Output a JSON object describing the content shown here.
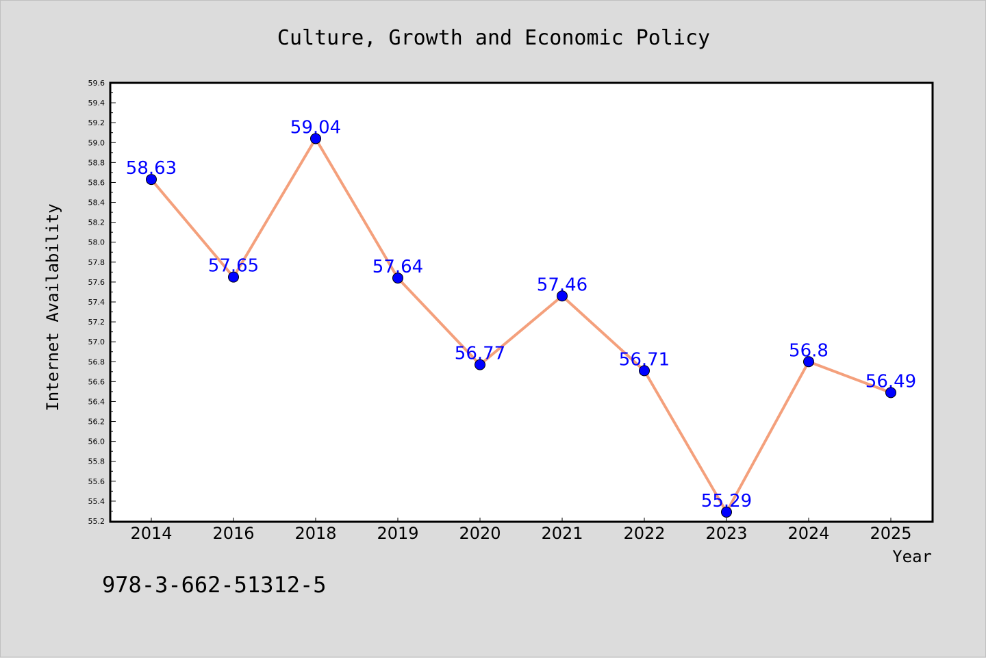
{
  "chart_data": {
    "type": "line",
    "title": "Culture, Growth and Economic Policy",
    "xlabel": "Year",
    "ylabel": "Internet Availability",
    "categories": [
      "2014",
      "2016",
      "2018",
      "2019",
      "2020",
      "2021",
      "2022",
      "2023",
      "2024",
      "2025"
    ],
    "series": [
      {
        "values": [
          58.63,
          57.65,
          59.04,
          57.64,
          56.77,
          57.46,
          56.71,
          55.29,
          56.8,
          56.49
        ],
        "data_labels": [
          "58.63",
          "57.65",
          "59.04",
          "57.64",
          "56.77",
          "57.46",
          "56.71",
          "55.29",
          "56.8",
          "56.49"
        ],
        "line_color": "#f4a07c",
        "marker_color": "#0000ff"
      }
    ],
    "ylim": [
      55.2,
      59.6
    ],
    "yticks": [
      "55.2",
      "55.4",
      "55.6",
      "55.8",
      "56.0",
      "56.2",
      "56.4",
      "56.6",
      "56.8",
      "57.0",
      "57.2",
      "57.4",
      "57.6",
      "57.8",
      "58.0",
      "58.2",
      "58.4",
      "58.6",
      "58.8",
      "59.0",
      "59.2",
      "59.4",
      "59.6"
    ],
    "grid": false,
    "legend": "none"
  },
  "footer": {
    "isbn": "978-3-662-51312-5"
  },
  "colors": {
    "background": "#dcdcdc",
    "plot_background": "#ffffff",
    "line": "#f4a07c",
    "marker": "#0000ff",
    "label": "#0000ff"
  }
}
